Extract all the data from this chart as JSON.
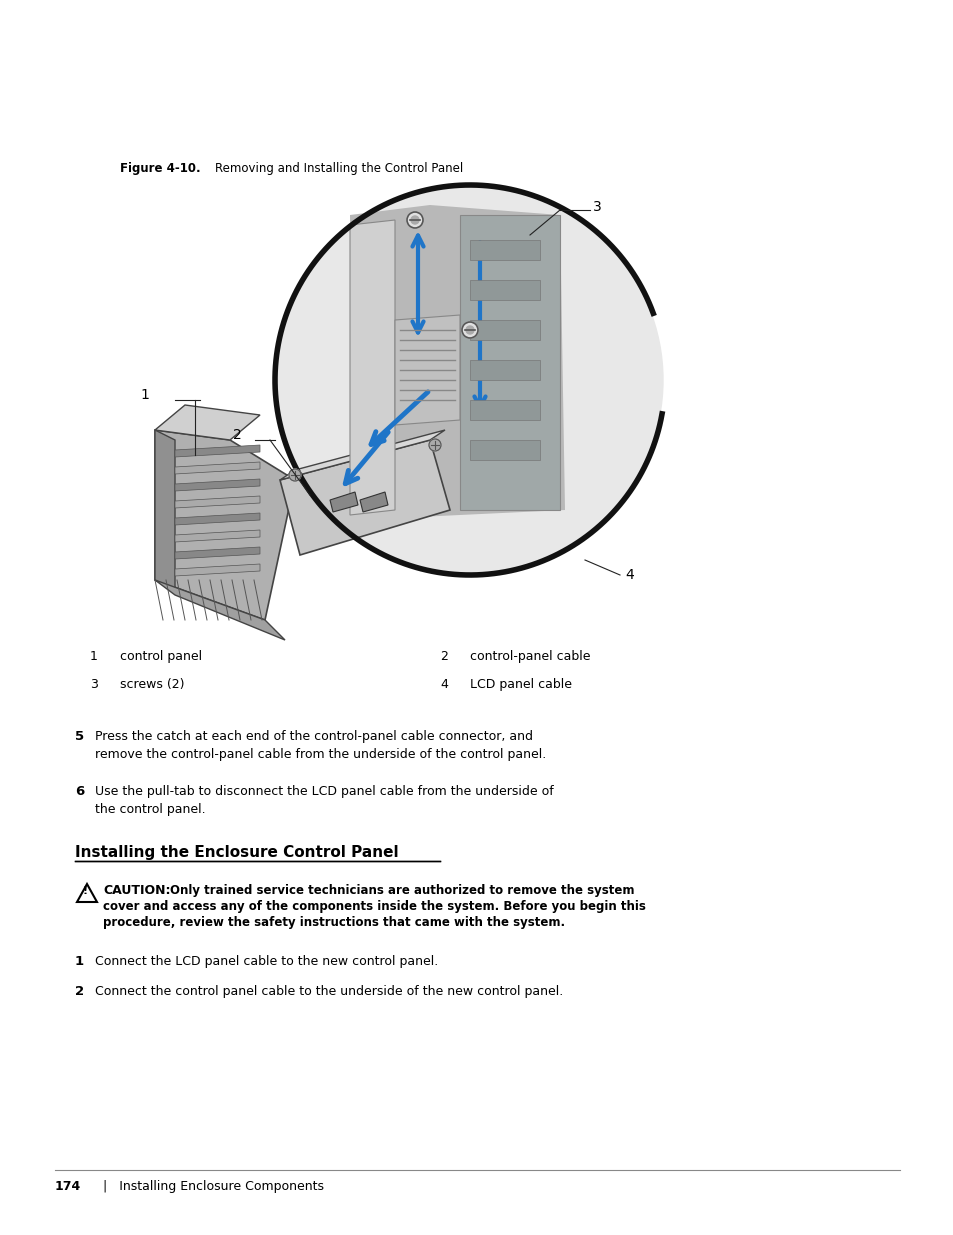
{
  "bg_color": "#ffffff",
  "figure_label": "Figure 4-10.",
  "figure_title": "    Removing and Installing the Control Panel",
  "labels": {
    "1": "control panel",
    "2": "control-panel cable",
    "3": "screws (2)",
    "4": "LCD panel cable"
  },
  "step5_bold": "5",
  "step5_text": "   Press the catch at each end of the control-panel cable connector, and\n   remove the control-panel cable from the underside of the control panel.",
  "step6_bold": "6",
  "step6_text": "   Use the pull-tab to disconnect the LCD panel cable from the underside of\n   the control panel.",
  "section_title": "Installing the Enclosure Control Panel",
  "caution_label": "CAUTION:",
  "caution_text": " Only trained service technicians are authorized to remove the system\ncover and access any of the components inside the system. Before you begin this\nprocedure, review the safety instructions that came with the system.",
  "install1_bold": "1",
  "install1_text": "   Connect the LCD panel cable to the new control panel.",
  "install2_bold": "2",
  "install2_text": "   Connect the control panel cable to the underside of the new control panel.",
  "footer_page": "174",
  "footer_text": "  |   Installing Enclosure Components",
  "blue_color": "#1F75C8",
  "dark_color": "#222222",
  "gray_color": "#888888",
  "light_gray": "#cccccc",
  "arrow_color": "#1F75C8"
}
